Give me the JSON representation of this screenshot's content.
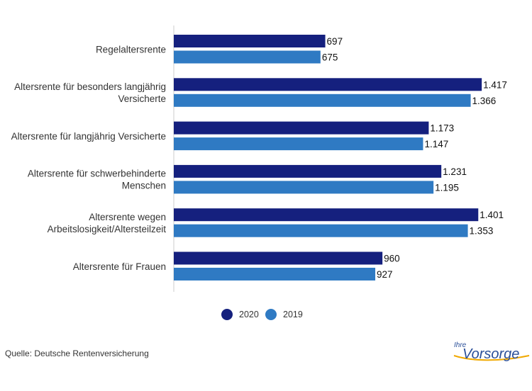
{
  "chart_data": {
    "type": "bar",
    "orientation": "horizontal",
    "categories": [
      [
        "Regelaltersrente"
      ],
      [
        "Altersrente für besonders langjährig",
        "Versicherte"
      ],
      [
        "Altersrente für langjährig Versicherte"
      ],
      [
        "Altersrente für schwerbehinderte",
        "Menschen"
      ],
      [
        "Altersrente wegen",
        "Arbeitslosigkeit/Altersteilzeit"
      ],
      [
        "Altersrente für Frauen"
      ]
    ],
    "series": [
      {
        "name": "2020",
        "color": "#15207e",
        "values": [
          697,
          1417,
          1173,
          1231,
          1401,
          960
        ],
        "labels": [
          "697",
          "1.417",
          "1.173",
          "1.231",
          "1.401",
          "960"
        ]
      },
      {
        "name": "2019",
        "color": "#2f7ac3",
        "values": [
          675,
          1366,
          1147,
          1195,
          1353,
          927
        ],
        "labels": [
          "675",
          "1.366",
          "1.147",
          "1.195",
          "1.353",
          "927"
        ]
      }
    ],
    "xlim": [
      0,
      1500
    ],
    "grid": false,
    "legend_position": "bottom"
  },
  "source": "Quelle: Deutsche Rentenversicherung",
  "logo": {
    "small": "Ihre",
    "main": "Vorsorge"
  }
}
